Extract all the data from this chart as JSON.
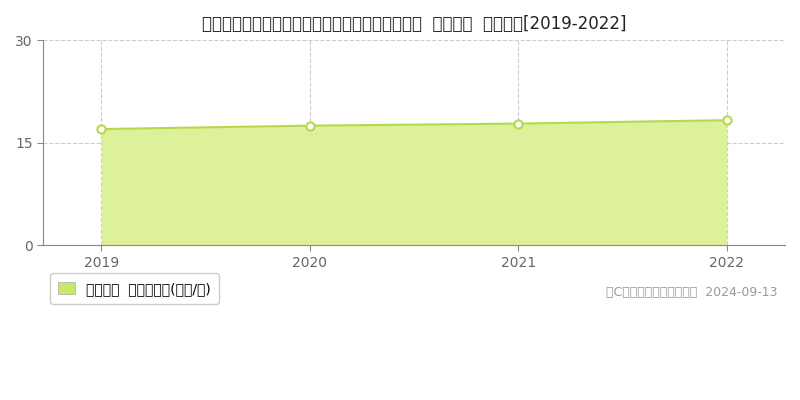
{
  "title": "北海道札幌市北区篠路３条４丁目３８番５７５外  地価公示  地価推移[2019-2022]",
  "years": [
    2019,
    2020,
    2021,
    2022
  ],
  "values": [
    17.0,
    17.5,
    17.8,
    18.3
  ],
  "line_color": "#b5d94a",
  "fill_color": "#ddf09a",
  "marker_facecolor": "#ffffff",
  "marker_edgecolor": "#b5d94a",
  "bg_color": "#ffffff",
  "grid_color": "#cccccc",
  "ylabel_ticks": [
    0,
    15,
    30
  ],
  "ylim": [
    0,
    30
  ],
  "xlim": [
    2018.72,
    2022.28
  ],
  "legend_label": "地価公示  平均坪単価(万円/坪)",
  "legend_marker_color": "#c8e86b",
  "copyright_text": "（C）土地価格ドットコム  2024-09-13",
  "title_fontsize": 12,
  "tick_fontsize": 10,
  "legend_fontsize": 10,
  "copyright_fontsize": 9,
  "spine_color": "#888888"
}
